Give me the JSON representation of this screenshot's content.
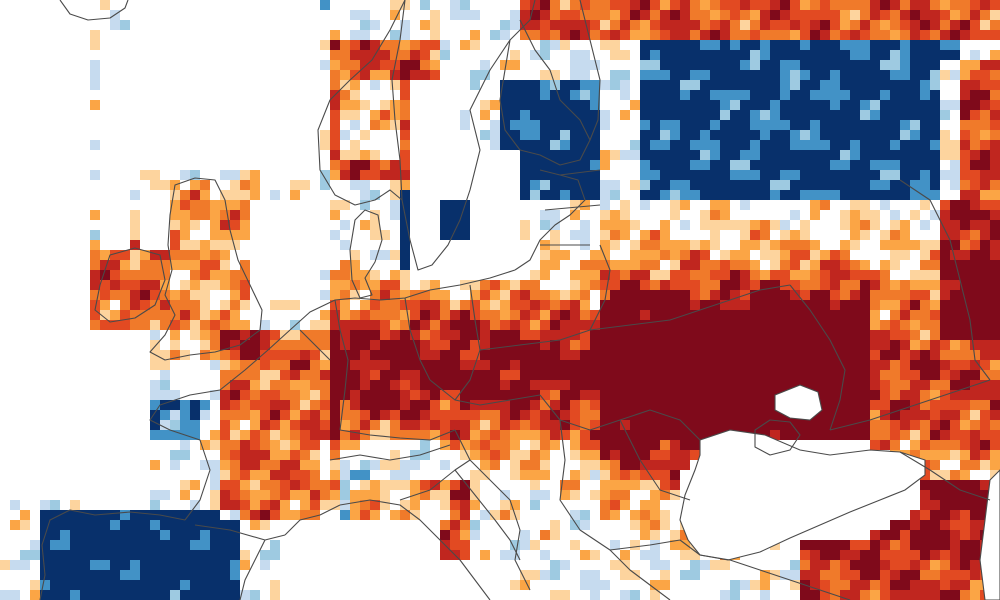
{
  "map": {
    "region": "Europe",
    "projection": "equirectangular",
    "lon_range": [
      -10,
      50
    ],
    "lat_range": [
      36,
      66
    ],
    "legend_visible": false,
    "color_scale": {
      "deep_red": "#7f0a1b",
      "red": "#c0261f",
      "red_orange": "#e24a22",
      "orange": "#f07a2a",
      "light_orange": "#fba545",
      "pale_orange": "#fdd49e",
      "neutral": "#ffffff",
      "pale_blue": "#c6dbef",
      "light_blue": "#9ecae1",
      "blue": "#4292c6",
      "dark_blue": "#08306b"
    },
    "icons": [
      "country-border-lines",
      "coastline",
      "pixel-grid-anomaly"
    ]
  }
}
